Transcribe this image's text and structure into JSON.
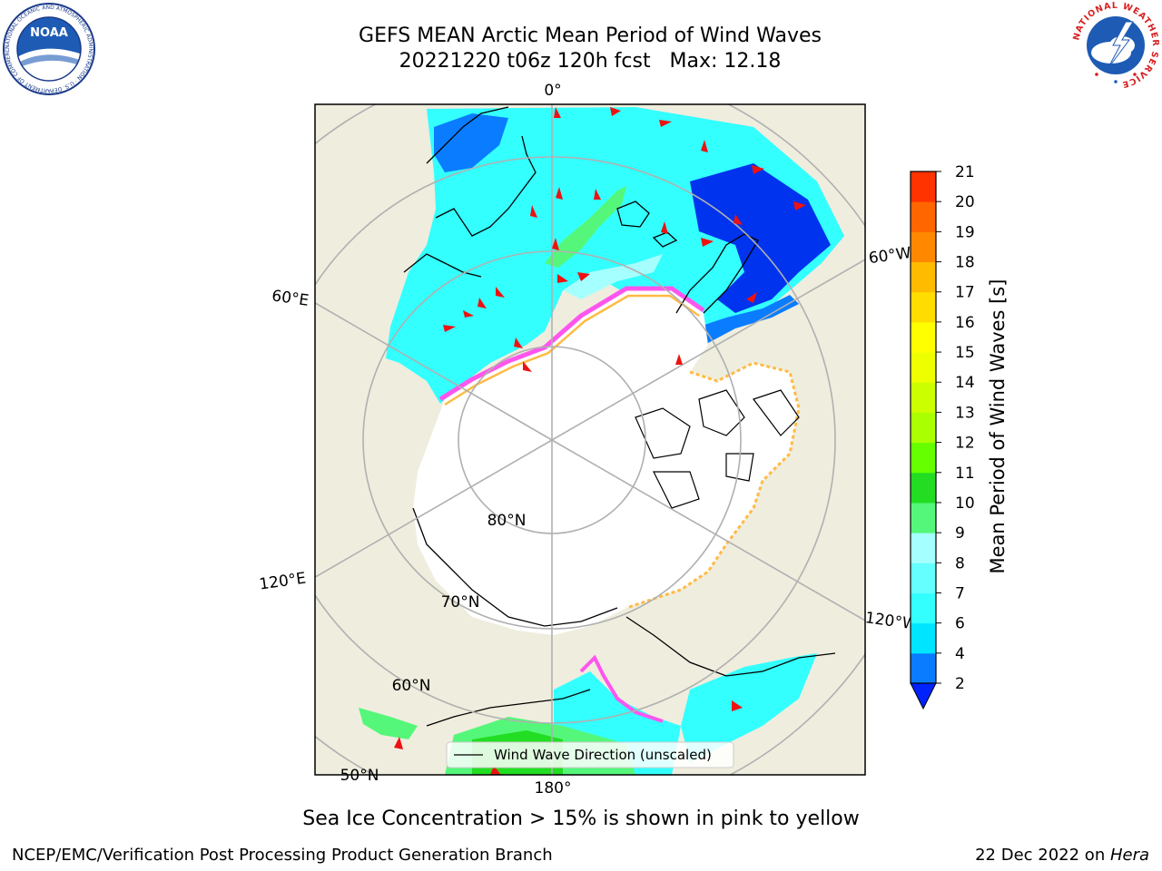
{
  "header": {
    "title_line1": "GEFS MEAN Arctic Mean Period of Wind Waves",
    "title_line2": "20221220 t06z 120h fcst   Max: 12.18"
  },
  "logos": {
    "noaa_text": "NOAA",
    "noaa_ring_text": "NATIONAL OCEANIC AND ATMOSPHERIC ADMINISTRATION · U.S. DEPARTMENT OF COMMERCE",
    "nws_ring_text": "NATIONAL WEATHER SERVICE"
  },
  "colors": {
    "land": "#efedde",
    "ice": "#ffffff",
    "grid": "#b0b0b0",
    "arrow": "#ee1111"
  },
  "chart_data": {
    "type": "heatmap",
    "projection": "north polar stereographic",
    "field": "Mean Period of Wind Waves",
    "max_value": 12.18,
    "meridian_labels": [
      "0°",
      "60°E",
      "120°E",
      "180°",
      "120°W",
      "60°W"
    ],
    "parallel_labels": [
      "80°N",
      "70°N",
      "60°N",
      "50°N"
    ],
    "legend_entry": "Wind Wave Direction (unscaled)",
    "colorbar": {
      "label": "Mean Period of Wind Waves [s]",
      "ticks": [
        2,
        4,
        6,
        7,
        8,
        9,
        10,
        11,
        12,
        13,
        14,
        15,
        16,
        17,
        18,
        19,
        20,
        21
      ],
      "colors": [
        "#0a7cff",
        "#00e5ff",
        "#33ffff",
        "#66ffff",
        "#a6ffff",
        "#55f77a",
        "#22dd22",
        "#66ff00",
        "#aaff00",
        "#ccff00",
        "#eeff00",
        "#ffff00",
        "#ffdd00",
        "#ffbb00",
        "#ff8800",
        "#ff6600",
        "#ff3300"
      ],
      "extend_min_color": "#0022ff",
      "extend": "min"
    }
  },
  "caption": "Sea Ice Concentration > 15% is shown in pink to yellow",
  "footer": {
    "left": "NCEP/EMC/Verification Post Processing Product Generation Branch",
    "right_date": "22 Dec 2022 on ",
    "right_host": "Hera"
  }
}
